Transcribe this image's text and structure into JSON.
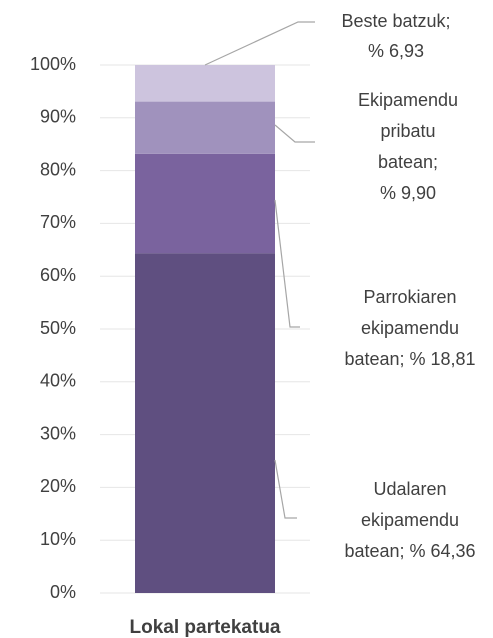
{
  "chart_data": {
    "type": "stacked_bar",
    "categories": [
      "Lokal partekatua"
    ],
    "series": [
      {
        "color": "#5f4f80",
        "values": [
          64.36
        ],
        "value_labels": [
          "Udalaren ekipamendu batean; % 64,36"
        ]
      },
      {
        "color": "#7a639e",
        "values": [
          18.81
        ],
        "value_labels": [
          "Parrokiaren ekipamendu batean; % 18,81"
        ]
      },
      {
        "color": "#a092bd",
        "values": [
          9.9
        ],
        "value_labels": [
          "Ekipamendu pribatu batean; % 9,90"
        ]
      },
      {
        "color": "#cdc4de",
        "values": [
          6.93
        ],
        "value_labels": [
          "Beste batzuk; % 6,93"
        ]
      }
    ],
    "ylim": [
      0,
      100
    ],
    "yticks": [
      {
        "value": 0,
        "label": "0%"
      },
      {
        "value": 10,
        "label": "10%"
      },
      {
        "value": 20,
        "label": "20%"
      },
      {
        "value": 30,
        "label": "30%"
      },
      {
        "value": 40,
        "label": "40%"
      },
      {
        "value": 50,
        "label": "50%"
      },
      {
        "value": 60,
        "label": "60%"
      },
      {
        "value": 70,
        "label": "70%"
      },
      {
        "value": 80,
        "label": "80%"
      },
      {
        "value": 90,
        "label": "90%"
      },
      {
        "value": 100,
        "label": "100%"
      }
    ],
    "grid": true
  }
}
